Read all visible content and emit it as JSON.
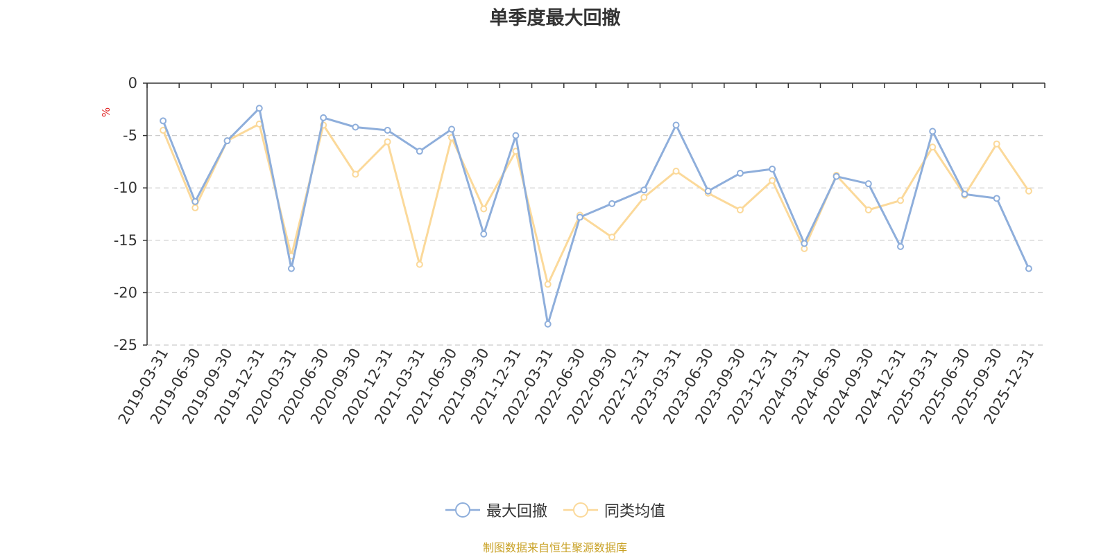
{
  "chart_data": {
    "type": "line",
    "title": "单季度最大回撤",
    "ylabel": "%",
    "ylim": [
      -25,
      0
    ],
    "yticks": [
      0,
      -5,
      -10,
      -15,
      -20,
      -25
    ],
    "grid": true,
    "legend_position": "bottom",
    "categories": [
      "2019-03-31",
      "2019-06-30",
      "2019-09-30",
      "2019-12-31",
      "2020-03-31",
      "2020-06-30",
      "2020-09-30",
      "2020-12-31",
      "2021-03-31",
      "2021-06-30",
      "2021-09-30",
      "2021-12-31",
      "2022-03-31",
      "2022-06-30",
      "2022-09-30",
      "2022-12-31",
      "2023-03-31",
      "2023-06-30",
      "2023-09-30",
      "2023-12-31",
      "2024-03-31",
      "2024-06-30",
      "2024-09-30",
      "2024-12-31",
      "2025-03-31",
      "2025-06-30",
      "2025-09-30",
      "2025-12-31"
    ],
    "series": [
      {
        "name": "最大回撤",
        "color": "#8eaedb",
        "values": [
          -3.6,
          -11.3,
          -5.5,
          -2.4,
          -17.7,
          -3.3,
          -4.2,
          -4.5,
          -6.5,
          -4.4,
          -14.4,
          -5.0,
          -23.0,
          -12.8,
          -11.5,
          -10.2,
          -4.0,
          -10.3,
          -8.6,
          -8.2,
          -15.3,
          -8.9,
          -9.6,
          -15.6,
          -4.6,
          -10.6,
          -11.0,
          -17.7
        ]
      },
      {
        "name": "同类均值",
        "color": "#fbd99a",
        "values": [
          -4.5,
          -11.9,
          -5.5,
          -3.9,
          -16.5,
          -4.0,
          -8.7,
          -5.6,
          -17.3,
          -5.2,
          -12.0,
          -6.5,
          -19.2,
          -12.6,
          -14.7,
          -10.9,
          -8.4,
          -10.5,
          -12.1,
          -9.3,
          -15.8,
          -8.8,
          -12.1,
          -11.2,
          -6.1,
          -10.7,
          -5.8,
          -10.3
        ]
      }
    ]
  },
  "legend": {
    "items": [
      {
        "label": "最大回撤",
        "color": "#8eaedb"
      },
      {
        "label": "同类均值",
        "color": "#fbd99a"
      }
    ]
  },
  "footer": {
    "source": "制图数据来自恒生聚源数据库"
  }
}
